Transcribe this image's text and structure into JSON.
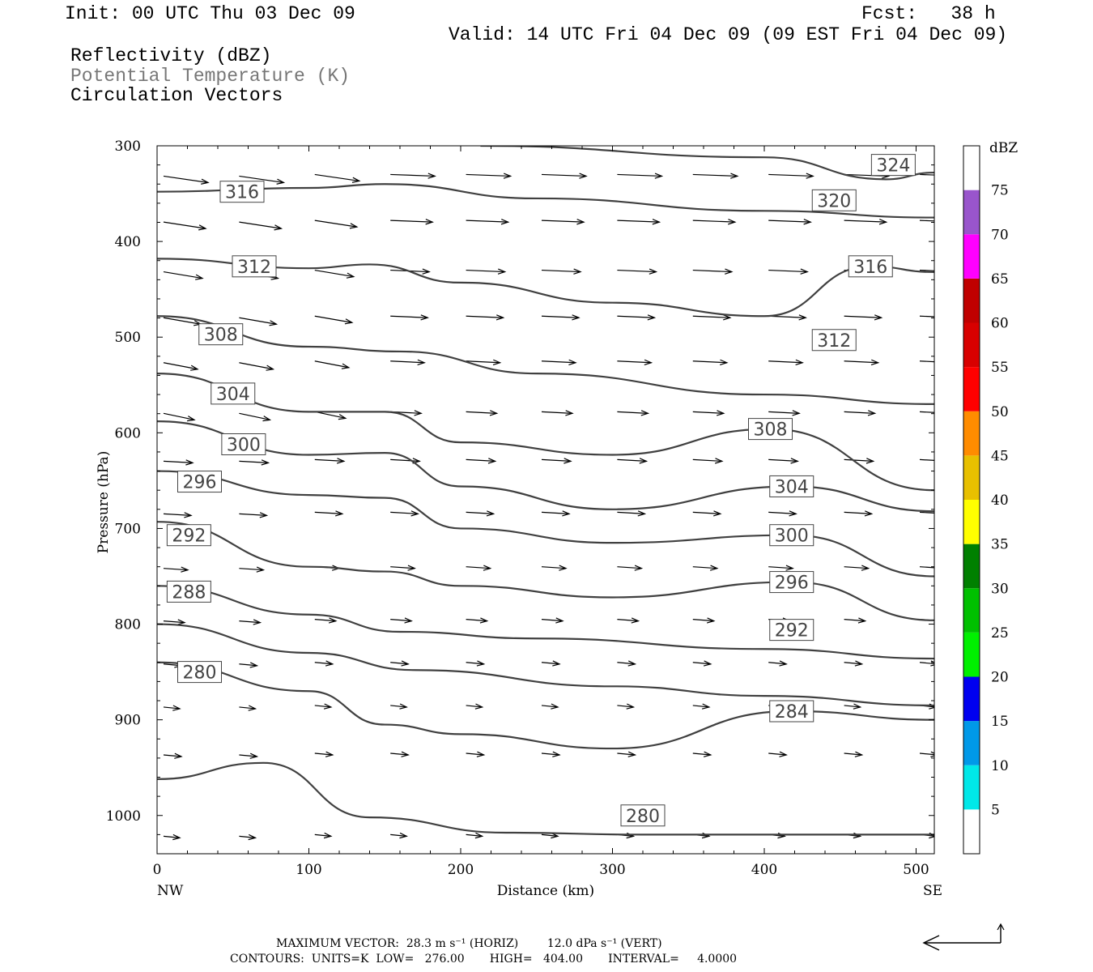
{
  "header": {
    "init": "Init: 00 UTC Thu 03 Dec 09",
    "fcst": "Fcst:   38 h",
    "valid": "Valid: 14 UTC Fri 04 Dec 09 (09 EST Fri 04 Dec 09)",
    "fields": [
      "Reflectivity (dBZ)",
      "Potential Temperature (K)",
      "Circulation Vectors"
    ]
  },
  "colors": {
    "contour": "#404040",
    "colorbar": [
      "#ffffff",
      "#00e8e8",
      "#0099e8",
      "#0000f0",
      "#00f000",
      "#00c000",
      "#008000",
      "#ffff00",
      "#e8c000",
      "#ff8c00",
      "#ff0000",
      "#d80000",
      "#c00000",
      "#ff00ff",
      "#9955cc",
      "#ffffff"
    ]
  },
  "footer": {
    "max_vector": "MAXIMUM VECTOR:  28.3 m s⁻¹ (HORIZ)        12.0 dPa s⁻¹ (VERT)",
    "contours": "CONTOURS:  UNITS=K  LOW=   276.00       HIGH=   404.00       INTERVAL=     4.0000"
  },
  "chart_data": {
    "type": "contour",
    "xlabel": "Distance (km)",
    "ylabel": "Pressure (hPa)",
    "xlim": [
      0,
      512
    ],
    "ylim": [
      1040,
      300
    ],
    "x_ticks": [
      "0",
      "100",
      "200",
      "300",
      "400",
      "500"
    ],
    "y_ticks": [
      "300",
      "400",
      "500",
      "600",
      "700",
      "800",
      "900",
      "1000"
    ],
    "x_end_labels": {
      "left": "NW",
      "right": "SE"
    },
    "colorbar": {
      "label": "dBZ",
      "ticks": [
        "5",
        "10",
        "15",
        "20",
        "25",
        "30",
        "35",
        "40",
        "45",
        "50",
        "55",
        "60",
        "65",
        "70",
        "75"
      ]
    },
    "isentropes": [
      {
        "name": "324",
        "labels": [
          [
            485,
            320
          ]
        ],
        "points": [
          [
            213,
            300
          ],
          [
            400,
            312
          ],
          [
            480,
            335
          ],
          [
            512,
            328
          ]
        ]
      },
      {
        "name": "320",
        "labels": [
          [
            446,
            357
          ]
        ],
        "points": [
          [
            0,
            348
          ],
          [
            100,
            344
          ],
          [
            150,
            340
          ],
          [
            250,
            355
          ],
          [
            400,
            368
          ],
          [
            512,
            375
          ]
        ]
      },
      {
        "name": "316",
        "labels": [
          [
            56,
            348
          ],
          [
            470,
            426
          ]
        ],
        "points": [
          [
            0,
            418
          ],
          [
            100,
            428
          ],
          [
            140,
            424
          ],
          [
            200,
            443
          ],
          [
            300,
            464
          ],
          [
            400,
            478
          ],
          [
            470,
            426
          ],
          [
            512,
            432
          ]
        ]
      },
      {
        "name": "312",
        "labels": [
          [
            64,
            426
          ],
          [
            446,
            503
          ]
        ],
        "points": [
          [
            0,
            478
          ],
          [
            100,
            510
          ],
          [
            160,
            515
          ],
          [
            250,
            538
          ],
          [
            400,
            560
          ],
          [
            512,
            570
          ]
        ]
      },
      {
        "name": "308",
        "labels": [
          [
            42,
            497
          ],
          [
            404,
            596
          ]
        ],
        "points": [
          [
            0,
            538
          ],
          [
            100,
            578
          ],
          [
            150,
            578
          ],
          [
            200,
            610
          ],
          [
            300,
            623
          ],
          [
            404,
            596
          ],
          [
            512,
            660
          ]
        ]
      },
      {
        "name": "304",
        "labels": [
          [
            50,
            559
          ],
          [
            418,
            656
          ]
        ],
        "points": [
          [
            0,
            588
          ],
          [
            100,
            623
          ],
          [
            150,
            621
          ],
          [
            200,
            656
          ],
          [
            300,
            680
          ],
          [
            418,
            656
          ],
          [
            512,
            682
          ]
        ]
      },
      {
        "name": "300",
        "labels": [
          [
            57,
            612
          ],
          [
            418,
            707
          ]
        ],
        "points": [
          [
            0,
            640
          ],
          [
            100,
            665
          ],
          [
            150,
            668
          ],
          [
            200,
            700
          ],
          [
            300,
            715
          ],
          [
            418,
            707
          ],
          [
            512,
            750
          ]
        ]
      },
      {
        "name": "296",
        "labels": [
          [
            28,
            651
          ],
          [
            418,
            756
          ]
        ],
        "points": [
          [
            0,
            693
          ],
          [
            100,
            740
          ],
          [
            150,
            745
          ],
          [
            200,
            760
          ],
          [
            300,
            772
          ],
          [
            418,
            756
          ],
          [
            512,
            796
          ]
        ]
      },
      {
        "name": "292",
        "labels": [
          [
            21,
            707
          ],
          [
            418,
            806
          ]
        ],
        "points": [
          [
            0,
            760
          ],
          [
            100,
            790
          ],
          [
            160,
            808
          ],
          [
            250,
            815
          ],
          [
            400,
            826
          ],
          [
            512,
            836
          ]
        ]
      },
      {
        "name": "288",
        "labels": [
          [
            21,
            766
          ]
        ],
        "points": [
          [
            0,
            800
          ],
          [
            100,
            830
          ],
          [
            170,
            848
          ],
          [
            300,
            865
          ],
          [
            400,
            875
          ],
          [
            512,
            885
          ]
        ]
      },
      {
        "name": "284",
        "labels": [
          [
            418,
            891
          ]
        ],
        "points": [
          [
            0,
            840
          ],
          [
            100,
            870
          ],
          [
            150,
            905
          ],
          [
            200,
            915
          ],
          [
            300,
            930
          ],
          [
            418,
            891
          ],
          [
            512,
            900
          ]
        ]
      },
      {
        "name": "280",
        "labels": [
          [
            28,
            850
          ],
          [
            320,
            1000
          ]
        ],
        "points": [
          [
            0,
            962
          ],
          [
            70,
            945
          ],
          [
            140,
            1002
          ],
          [
            230,
            1018
          ],
          [
            320,
            1020
          ],
          [
            512,
            1020
          ]
        ]
      }
    ]
  }
}
